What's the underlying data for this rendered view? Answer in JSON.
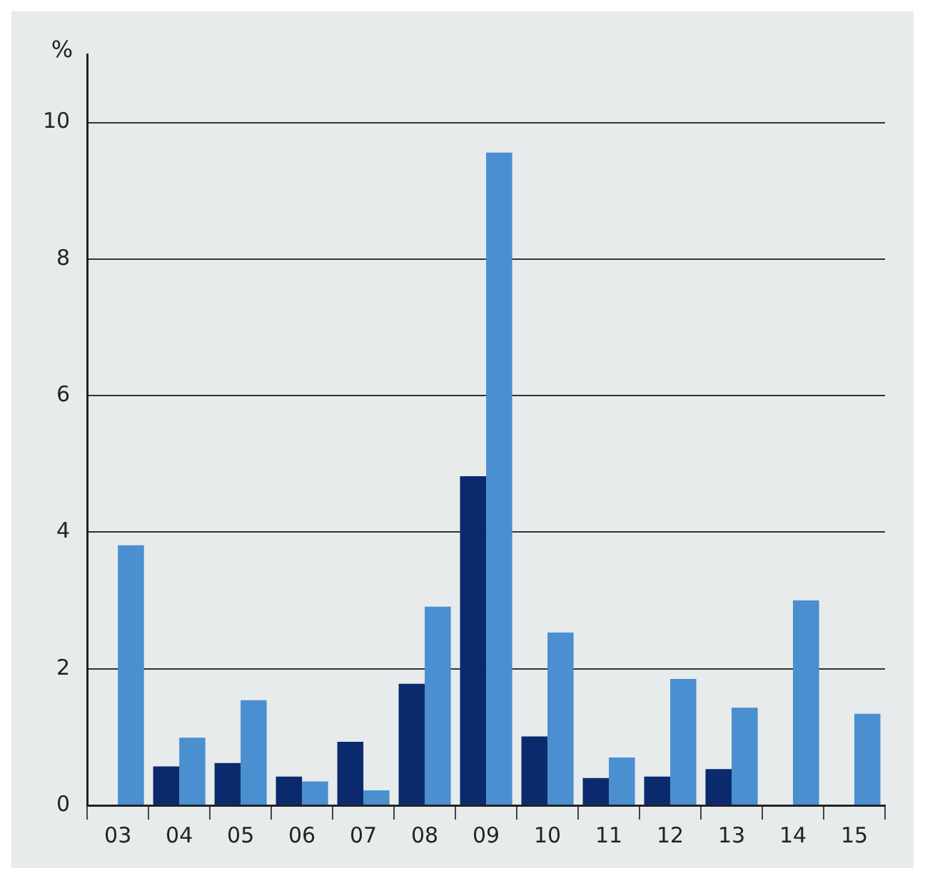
{
  "chart_data": {
    "type": "bar",
    "ylabel": "%",
    "categories": [
      "03",
      "04",
      "05",
      "06",
      "07",
      "08",
      "09",
      "10",
      "11",
      "12",
      "13",
      "14",
      "15"
    ],
    "series": [
      {
        "color": "#0b2a6e",
        "values": [
          null,
          0.57,
          0.62,
          0.42,
          0.93,
          1.78,
          4.82,
          1.01,
          0.4,
          0.42,
          0.53,
          null,
          null
        ]
      },
      {
        "color": "#4a8fd0",
        "values": [
          3.81,
          0.99,
          1.54,
          0.35,
          0.22,
          2.91,
          9.56,
          2.53,
          0.7,
          1.85,
          1.43,
          3.0,
          1.34
        ]
      }
    ],
    "ylim": [
      0,
      11
    ],
    "yticks": [
      0,
      2,
      4,
      6,
      8,
      10
    ],
    "grid": "y",
    "legend": false
  }
}
